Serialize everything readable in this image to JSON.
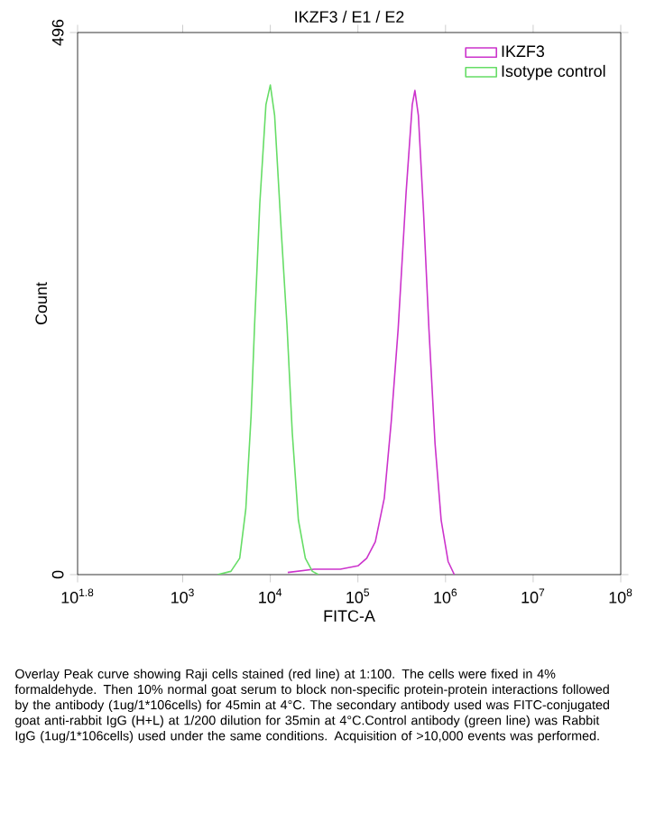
{
  "chart_data": {
    "type": "line",
    "title": "IKZF3 / E1 / E2",
    "xlabel": "FITC-A",
    "ylabel": "Count",
    "log": "x",
    "legend": "top right",
    "marker": "none",
    "line_style": "solid",
    "xlim": [
      63.1,
      100000000
    ],
    "xticks": [
      {
        "value": 63.1,
        "label": "10$^{1.8}$"
      },
      {
        "value": 1000,
        "label": "10$^{3}$"
      },
      {
        "value": 10000,
        "label": "10$^{4}$"
      },
      {
        "value": 100000,
        "label": "10$^{5}$"
      },
      {
        "value": 1000000,
        "label": "10$^{6}$"
      },
      {
        "value": 10000000,
        "label": "10$^{7}$"
      },
      {
        "value": 100000000,
        "label": "10$^{8}$"
      }
    ],
    "ylim": [
      0,
      496
    ],
    "yticks": [
      0,
      496
    ],
    "series": [
      {
        "name": "IKZF3",
        "color": "#cc33cc",
        "x": [
          15800,
          31600,
          63100,
          100000,
          126000,
          158000,
          200000,
          240000,
          288000,
          355000,
          417000,
          447000,
          490000,
          562000,
          646000,
          759000,
          891000,
          1070000,
          1260000
        ],
        "values": [
          2,
          5,
          5,
          8,
          15,
          30,
          70,
          140,
          225,
          350,
          430,
          443,
          420,
          330,
          225,
          120,
          50,
          12,
          0
        ]
      },
      {
        "name": "Isotype control",
        "color": "#66dd66",
        "x": [
          2500,
          3550,
          4470,
          5250,
          6030,
          6610,
          7590,
          8910,
          10000,
          11200,
          13200,
          15500,
          17800,
          20900,
          25100,
          30200,
          35500
        ],
        "values": [
          0,
          3,
          15,
          60,
          145,
          228,
          340,
          430,
          448,
          420,
          320,
          228,
          130,
          50,
          15,
          3,
          0
        ]
      }
    ],
    "annotations": [
      "Overlay Peak curve showing Raji cells stained (red line) at 1:100. The cells were fixed in 4% formaldehyde. Then 10% normal goat serum to block non-specific protein-protein interactions followed by the antibody (1ug/1*106cells) for 45min at 4°C. The secondary antibody used was FITC-conjugated goat anti-rabbit IgG (H+L) at 1/200 dilution for 35min at 4°C.Control antibody (green line) was Rabbit IgG (1ug/1*106cells) used under the same conditions. Acquisition of >10,000 events was performed."
    ]
  }
}
